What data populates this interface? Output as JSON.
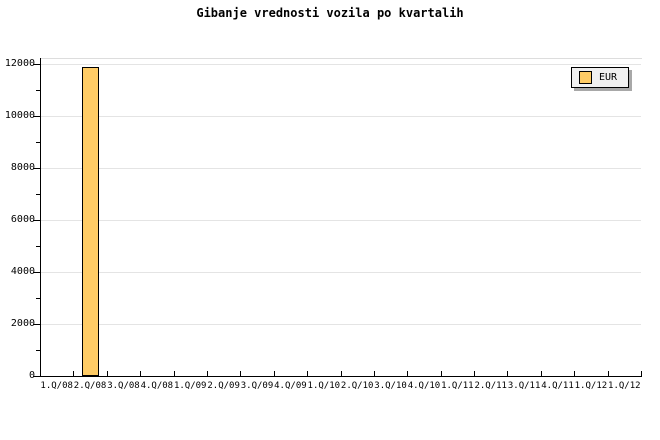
{
  "title": "Gibanje vrednosti vozila po kvartalih",
  "legend": {
    "label": "EUR",
    "swatch_color": "#FFCC66"
  },
  "chart_data": {
    "type": "bar",
    "title": "Gibanje vrednosti vozila po kvartalih",
    "categories": [
      "1.Q/08",
      "2.Q/08",
      "3.Q/08",
      "4.Q/08",
      "1.Q/09",
      "2.Q/09",
      "3.Q/09",
      "4.Q/09",
      "1.Q/10",
      "2.Q/10",
      "3.Q/10",
      "4.Q/10",
      "1.Q/11",
      "2.Q/11",
      "3.Q/11",
      "4.Q/11",
      "1.Q/12",
      "1.Q/12"
    ],
    "series": [
      {
        "name": "EUR",
        "values": [
          null,
          11900,
          null,
          null,
          null,
          null,
          null,
          null,
          null,
          null,
          null,
          null,
          null,
          null,
          null,
          null,
          null,
          null
        ]
      }
    ],
    "xlabel": "",
    "ylabel": "",
    "ylim": [
      0,
      12000
    ],
    "yticks": [
      0,
      2000,
      4000,
      6000,
      8000,
      10000,
      12000
    ],
    "ytick_minor_step": 1000,
    "grid": true,
    "legend_position": "top-right",
    "colors": {
      "bar_fill": "#FFCC66",
      "bar_border": "#000000",
      "gridline": "#E4E4E4",
      "axis": "#000000",
      "plot_outline": "#DDDDDD",
      "legend_bg": "#F0F0F0",
      "legend_shadow": "#A8A8A8",
      "background": "#FFFFFF"
    }
  }
}
